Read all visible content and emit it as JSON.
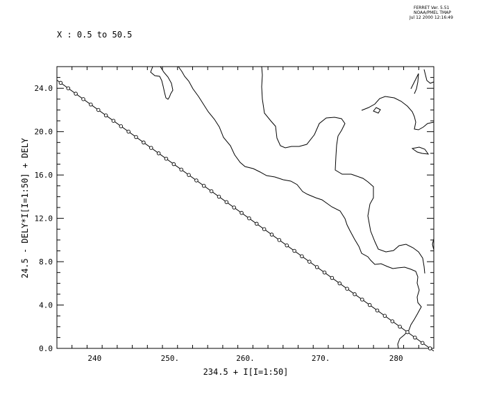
{
  "header": {
    "version": "FERRET Ver. 5.51",
    "org": "NOAA/PMEL TMAP",
    "timestamp": "Jul 12 2000 12:16:49",
    "subtitle": "X : 0.5 to 50.5"
  },
  "chart_data": {
    "type": "line",
    "xlabel": "234.5 + I[I=1:50]",
    "ylabel": "24.5 - DELY*I[I=1:50] + DELY",
    "xlim": [
      235.0,
      285.0
    ],
    "ylim": [
      0.0,
      26.0
    ],
    "x_ticks": [
      "240",
      "250.",
      "260.",
      "270.",
      "280"
    ],
    "x_tick_values": [
      240,
      250,
      260,
      270,
      280
    ],
    "y_ticks": [
      "0.0",
      "4.0",
      "8.0",
      "12.0",
      "16.0",
      "20.0",
      "24.0"
    ],
    "y_tick_values": [
      0,
      4,
      8,
      12,
      16,
      20,
      24
    ],
    "series": [
      {
        "x_start": 235.5,
        "x_step": 1.0,
        "y_start": 24.5,
        "y_step": -0.5,
        "count": 50,
        "marker": "circle",
        "color": "#000000"
      }
    ],
    "background": "coastline-map",
    "grid": false
  }
}
